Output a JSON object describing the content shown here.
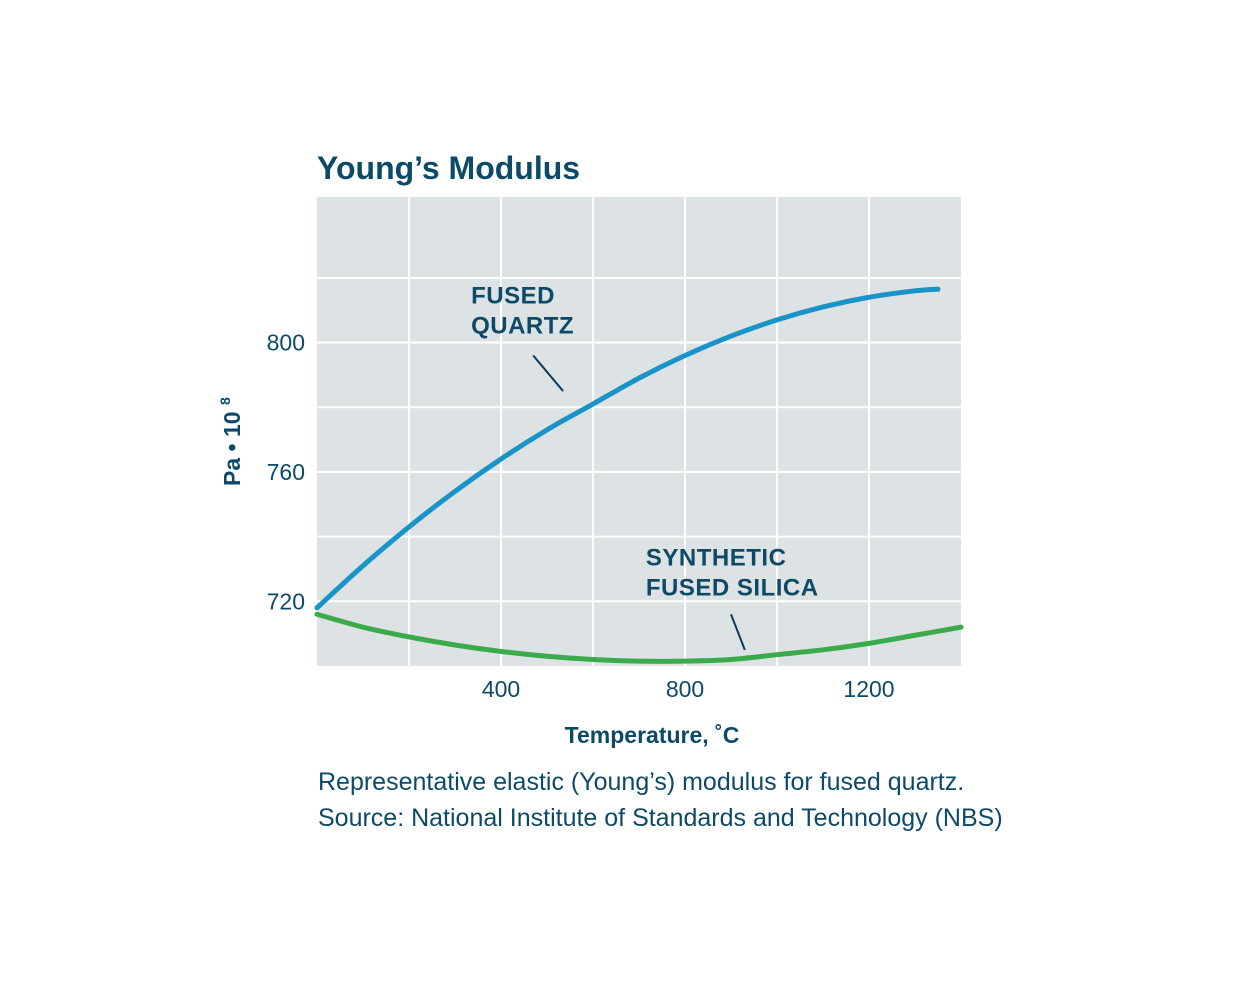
{
  "colors": {
    "text_primary": "#0d4a68",
    "plot_background": "#dde2e4",
    "grid_line": "#ffffff",
    "fused_quartz": "#1a94c8",
    "synthetic_fused_silica": "#3aaa4a",
    "leader_line": "#0d3a5a"
  },
  "chart_data": {
    "type": "line",
    "title": "Young’s Modulus",
    "xlabel": "Temperature, ˚C",
    "ylabel_main": "Pa • 10",
    "ylabel_superscript": "8",
    "xlim": [
      0,
      1400
    ],
    "ylim": [
      700,
      845
    ],
    "x_grid": [
      200,
      400,
      600,
      800,
      1000,
      1200
    ],
    "y_grid": [
      720,
      740,
      760,
      780,
      800,
      820
    ],
    "x_tick_labels": [
      {
        "value": 400,
        "label": "400"
      },
      {
        "value": 800,
        "label": "800"
      },
      {
        "value": 1200,
        "label": "1200"
      }
    ],
    "y_tick_labels": [
      {
        "value": 800,
        "label": "800"
      },
      {
        "value": 760,
        "label": "760"
      },
      {
        "value": 720,
        "label": "720"
      }
    ],
    "grid": true,
    "series": [
      {
        "name": "FUSED QUARTZ",
        "label_lines": [
          "FUSED",
          "QUARTZ"
        ],
        "color_key": "fused_quartz",
        "x": [
          0,
          100,
          200,
          300,
          400,
          500,
          600,
          700,
          800,
          900,
          1000,
          1100,
          1200,
          1300,
          1350
        ],
        "values": [
          718,
          731,
          743,
          754,
          764,
          773,
          781,
          789,
          796,
          802,
          807,
          811,
          814,
          816,
          816.5
        ],
        "label_anchor": {
          "x": 335,
          "y": 812
        },
        "leader_from": {
          "x": 470,
          "y": 796
        },
        "leader_to": {
          "x": 535,
          "y": 785
        }
      },
      {
        "name": "SYNTHETIC FUSED SILICA",
        "label_lines": [
          "SYNTHETIC",
          "FUSED SILICA"
        ],
        "color_key": "synthetic_fused_silica",
        "x": [
          0,
          100,
          200,
          300,
          400,
          500,
          600,
          700,
          800,
          900,
          1000,
          1100,
          1200,
          1300,
          1400
        ],
        "values": [
          716,
          712,
          709,
          706.5,
          704.5,
          703,
          702,
          701.5,
          701.5,
          702,
          703.5,
          705,
          707,
          709.5,
          712
        ],
        "label_anchor": {
          "x": 715,
          "y": 731
        },
        "leader_from": {
          "x": 900,
          "y": 716
        },
        "leader_to": {
          "x": 930,
          "y": 705
        }
      }
    ]
  },
  "caption": {
    "line1": "Representative elastic (Young’s) modulus for fused quartz.",
    "line2": "Source: National Institute of Standards and Technology (NBS)"
  }
}
